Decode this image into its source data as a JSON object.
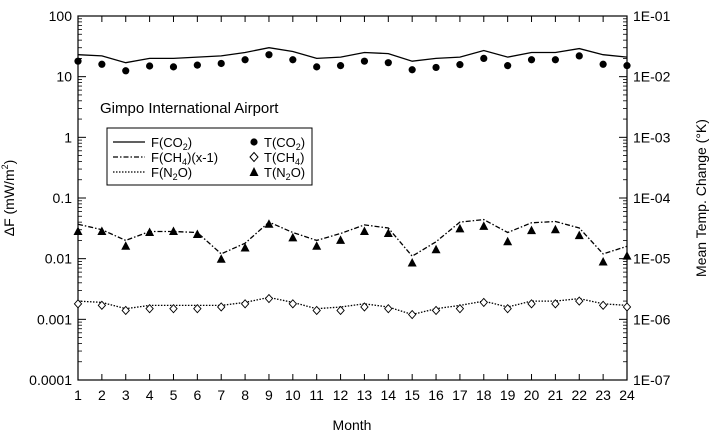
{
  "chart_data": {
    "type": "line",
    "annotation": "Gimpo International Airport",
    "xlabel": "Month",
    "ylabel_left_main": "ΔF (mW/m",
    "ylabel_left_sup": "2",
    "ylabel_left_tail": ")",
    "ylabel_right": "Mean Temp. Change (°K)",
    "y_scale": "log",
    "xlim": [
      1,
      24
    ],
    "ylim_left": [
      0.0001,
      100
    ],
    "ylim_right": [
      1e-07,
      0.1
    ],
    "x_ticks": [
      "1",
      "2",
      "3",
      "4",
      "5",
      "6",
      "7",
      "8",
      "9",
      "10",
      "11",
      "12",
      "13",
      "14",
      "15",
      "16",
      "17",
      "18",
      "19",
      "20",
      "21",
      "22",
      "23",
      "24"
    ],
    "y_ticks_left": [
      {
        "value": 100,
        "label": "100"
      },
      {
        "value": 10,
        "label": "10"
      },
      {
        "value": 1,
        "label": "1"
      },
      {
        "value": 0.1,
        "label": "0.1"
      },
      {
        "value": 0.01,
        "label": "0.01"
      },
      {
        "value": 0.001,
        "label": "0.001"
      },
      {
        "value": 0.0001,
        "label": "0.0001"
      }
    ],
    "y_ticks_right": [
      {
        "value": 0.1,
        "label": "1E-01"
      },
      {
        "value": 0.01,
        "label": "1E-02"
      },
      {
        "value": 0.001,
        "label": "1E-03"
      },
      {
        "value": 0.0001,
        "label": "1E-04"
      },
      {
        "value": 1e-05,
        "label": "1E-05"
      },
      {
        "value": 1e-06,
        "label": "1E-06"
      },
      {
        "value": 1e-07,
        "label": "1E-07"
      }
    ],
    "grid": false,
    "legend_position": "upper-left",
    "legend": {
      "fco2": {
        "pre": "F(CO",
        "sub": "2",
        "post": ")"
      },
      "fch4": {
        "pre": "F(CH",
        "sub": "4",
        "post": ")(x-1)"
      },
      "fn2o": {
        "pre": "F(N",
        "sub": "2",
        "post": "O)"
      },
      "tco2": {
        "pre": "T(CO",
        "sub": "2",
        "post": ")"
      },
      "tch4": {
        "pre": "T(CH",
        "sub": "4",
        "post": ")"
      },
      "tn2o": {
        "pre": "T(N",
        "sub": "2",
        "post": "O)"
      }
    },
    "series": [
      {
        "key": "fco2",
        "axis": "left",
        "style": "solid",
        "values": [
          23,
          22,
          17,
          20,
          20,
          21,
          22,
          25,
          30,
          26,
          20,
          21,
          25,
          24,
          18,
          20,
          21,
          27,
          21,
          25,
          25,
          29,
          23,
          21
        ]
      },
      {
        "key": "fch4",
        "axis": "left",
        "style": "dashdot",
        "values": [
          0.037,
          0.03,
          0.02,
          0.028,
          0.028,
          0.027,
          0.012,
          0.018,
          0.04,
          0.027,
          0.02,
          0.026,
          0.036,
          0.032,
          0.011,
          0.019,
          0.04,
          0.044,
          0.027,
          0.039,
          0.041,
          0.032,
          0.012,
          0.016
        ]
      },
      {
        "key": "fn2o",
        "axis": "left",
        "style": "dotted",
        "values": [
          0.002,
          0.0019,
          0.0015,
          0.0017,
          0.0017,
          0.0017,
          0.0017,
          0.0019,
          0.0023,
          0.0019,
          0.0015,
          0.0016,
          0.0018,
          0.0016,
          0.0012,
          0.0015,
          0.0017,
          0.002,
          0.0016,
          0.002,
          0.002,
          0.0022,
          0.0018,
          0.0017
        ]
      },
      {
        "key": "tco2",
        "axis": "right",
        "marker": "filled-circle",
        "values": [
          0.018,
          0.016,
          0.0125,
          0.015,
          0.0145,
          0.0155,
          0.0165,
          0.019,
          0.023,
          0.019,
          0.0145,
          0.0152,
          0.018,
          0.017,
          0.013,
          0.0142,
          0.0158,
          0.02,
          0.0152,
          0.019,
          0.019,
          0.022,
          0.016,
          0.0152
        ]
      },
      {
        "key": "tch4",
        "axis": "right",
        "marker": "open-diamond",
        "values": [
          1.8e-06,
          1.7e-06,
          1.4e-06,
          1.5e-06,
          1.5e-06,
          1.5e-06,
          1.6e-06,
          1.8e-06,
          2.2e-06,
          1.8e-06,
          1.4e-06,
          1.4e-06,
          1.6e-06,
          1.5e-06,
          1.2e-06,
          1.4e-06,
          1.5e-06,
          1.9e-06,
          1.5e-06,
          1.8e-06,
          1.8e-06,
          2e-06,
          1.7e-06,
          1.6e-06
        ]
      },
      {
        "key": "tn2o",
        "axis": "right",
        "marker": "filled-triangle",
        "values": [
          2.8e-05,
          2.8e-05,
          1.6e-05,
          2.7e-05,
          2.8e-05,
          2.5e-05,
          9.8e-06,
          1.5e-05,
          3.7e-05,
          2.2e-05,
          1.6e-05,
          2e-05,
          2.8e-05,
          2.6e-05,
          8.5e-06,
          1.4e-05,
          3.1e-05,
          3.4e-05,
          1.9e-05,
          2.9e-05,
          3e-05,
          2.4e-05,
          8.8e-06,
          1.1e-05
        ]
      }
    ]
  }
}
